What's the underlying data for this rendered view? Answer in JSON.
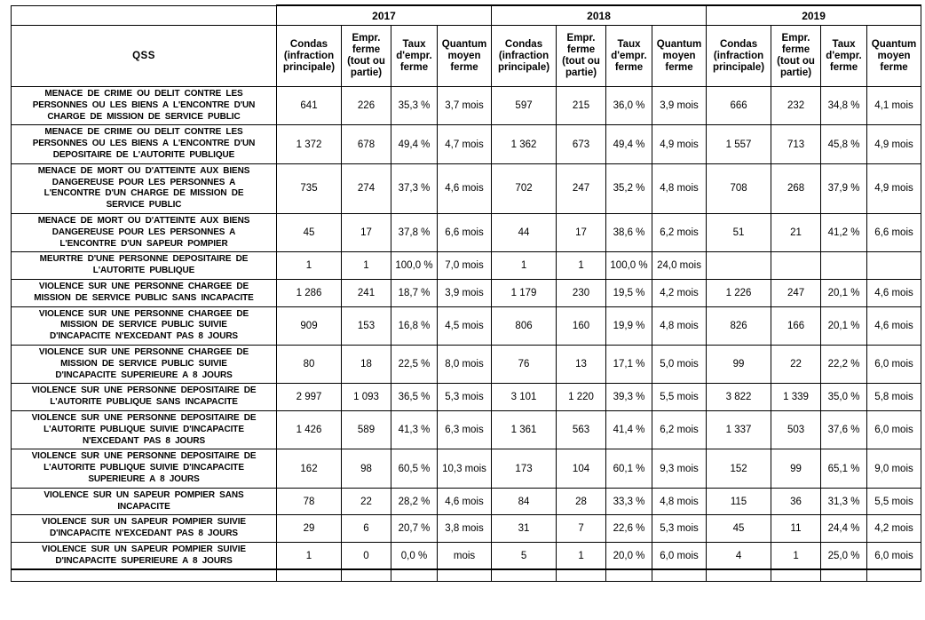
{
  "table": {
    "corner_header": "QSS",
    "year_groups": [
      "2017",
      "2018",
      "2019"
    ],
    "sub_headers": [
      "Condas\n(infraction\nprincipale)",
      "Empr.\nferme\n(tout ou\npartie)",
      "Taux\nd'empr.\nferme",
      "Quantum\nmoyen\nferme"
    ],
    "rows": [
      {
        "label": "MENACE DE CRIME OU DELIT CONTRE LES\nPERSONNES OU LES BIENS A L'ENCONTRE D'UN\nCHARGE DE MISSION DE SERVICE PUBLIC",
        "values": [
          "641",
          "226",
          "35,3 %",
          "3,7 mois",
          "597",
          "215",
          "36,0 %",
          "3,9 mois",
          "666",
          "232",
          "34,8 %",
          "4,1 mois"
        ]
      },
      {
        "label": "MENACE DE CRIME OU DELIT CONTRE LES\nPERSONNES OU LES BIENS A L'ENCONTRE D'UN\nDEPOSITAIRE DE L'AUTORITE PUBLIQUE",
        "values": [
          "1 372",
          "678",
          "49,4 %",
          "4,7 mois",
          "1 362",
          "673",
          "49,4 %",
          "4,9 mois",
          "1 557",
          "713",
          "45,8 %",
          "4,9 mois"
        ]
      },
      {
        "label": "MENACE DE MORT OU D'ATTEINTE AUX BIENS\nDANGEREUSE POUR LES PERSONNES A\nL'ENCONTRE D'UN CHARGE DE MISSION DE\nSERVICE PUBLIC",
        "values": [
          "735",
          "274",
          "37,3 %",
          "4,6 mois",
          "702",
          "247",
          "35,2 %",
          "4,8 mois",
          "708",
          "268",
          "37,9 %",
          "4,9 mois"
        ]
      },
      {
        "label": "MENACE DE MORT OU D'ATTEINTE AUX BIENS\nDANGEREUSE POUR LES PERSONNES A\nL'ENCONTRE D'UN SAPEUR POMPIER",
        "values": [
          "45",
          "17",
          "37,8 %",
          "6,6 mois",
          "44",
          "17",
          "38,6 %",
          "6,2 mois",
          "51",
          "21",
          "41,2 %",
          "6,6 mois"
        ]
      },
      {
        "label": "MEURTRE D'UNE PERSONNE DEPOSITAIRE DE\nL'AUTORITE PUBLIQUE",
        "values": [
          "1",
          "1",
          "100,0 %",
          "7,0 mois",
          "1",
          "1",
          "100,0 %",
          "24,0 mois",
          "",
          "",
          "",
          ""
        ]
      },
      {
        "label": "VIOLENCE SUR UNE PERSONNE CHARGEE DE\nMISSION DE SERVICE PUBLIC SANS INCAPACITE",
        "values": [
          "1 286",
          "241",
          "18,7 %",
          "3,9 mois",
          "1 179",
          "230",
          "19,5 %",
          "4,2 mois",
          "1 226",
          "247",
          "20,1 %",
          "4,6 mois"
        ]
      },
      {
        "label": "VIOLENCE SUR UNE PERSONNE CHARGEE DE\nMISSION DE SERVICE PUBLIC SUIVIE\nD'INCAPACITE N'EXCEDANT PAS 8 JOURS",
        "values": [
          "909",
          "153",
          "16,8 %",
          "4,5 mois",
          "806",
          "160",
          "19,9 %",
          "4,8 mois",
          "826",
          "166",
          "20,1 %",
          "4,6 mois"
        ]
      },
      {
        "label": "VIOLENCE SUR UNE PERSONNE CHARGEE DE\nMISSION DE SERVICE PUBLIC SUIVIE\nD'INCAPACITE SUPERIEURE A 8 JOURS",
        "values": [
          "80",
          "18",
          "22,5 %",
          "8,0 mois",
          "76",
          "13",
          "17,1 %",
          "5,0 mois",
          "99",
          "22",
          "22,2 %",
          "6,0 mois"
        ]
      },
      {
        "label": "VIOLENCE SUR UNE PERSONNE DEPOSITAIRE DE\nL'AUTORITE PUBLIQUE SANS INCAPACITE",
        "values": [
          "2 997",
          "1 093",
          "36,5 %",
          "5,3 mois",
          "3 101",
          "1 220",
          "39,3 %",
          "5,5 mois",
          "3 822",
          "1 339",
          "35,0 %",
          "5,8 mois"
        ]
      },
      {
        "label": "VIOLENCE SUR UNE PERSONNE DEPOSITAIRE DE\nL'AUTORITE PUBLIQUE SUIVIE D'INCAPACITE\nN'EXCEDANT PAS 8 JOURS",
        "values": [
          "1 426",
          "589",
          "41,3 %",
          "6,3 mois",
          "1 361",
          "563",
          "41,4 %",
          "6,2 mois",
          "1 337",
          "503",
          "37,6 %",
          "6,0 mois"
        ]
      },
      {
        "label": "VIOLENCE SUR UNE PERSONNE DEPOSITAIRE DE\nL'AUTORITE PUBLIQUE SUIVIE D'INCAPACITE\nSUPERIEURE A 8 JOURS",
        "values": [
          "162",
          "98",
          "60,5 %",
          "10,3 mois",
          "173",
          "104",
          "60,1 %",
          "9,3 mois",
          "152",
          "99",
          "65,1 %",
          "9,0 mois"
        ]
      },
      {
        "label": "VIOLENCE SUR UN SAPEUR POMPIER SANS\nINCAPACITE",
        "values": [
          "78",
          "22",
          "28,2 %",
          "4,6 mois",
          "84",
          "28",
          "33,3 %",
          "4,8 mois",
          "115",
          "36",
          "31,3 %",
          "5,5 mois"
        ]
      },
      {
        "label": "VIOLENCE SUR UN SAPEUR POMPIER SUIVIE\nD'INCAPACITE N'EXCEDANT PAS 8 JOURS",
        "values": [
          "29",
          "6",
          "20,7 %",
          "3,8 mois",
          "31",
          "7",
          "22,6 %",
          "5,3 mois",
          "45",
          "11",
          "24,4 %",
          "4,2 mois"
        ]
      },
      {
        "label": "VIOLENCE SUR UN SAPEUR POMPIER SUIVIE\nD'INCAPACITE SUPERIEURE A 8 JOURS",
        "values": [
          "1",
          "0",
          "0,0 %",
          "mois",
          "5",
          "1",
          "20,0 %",
          "6,0 mois",
          "4",
          "1",
          "25,0 %",
          "6,0 mois"
        ]
      }
    ]
  }
}
